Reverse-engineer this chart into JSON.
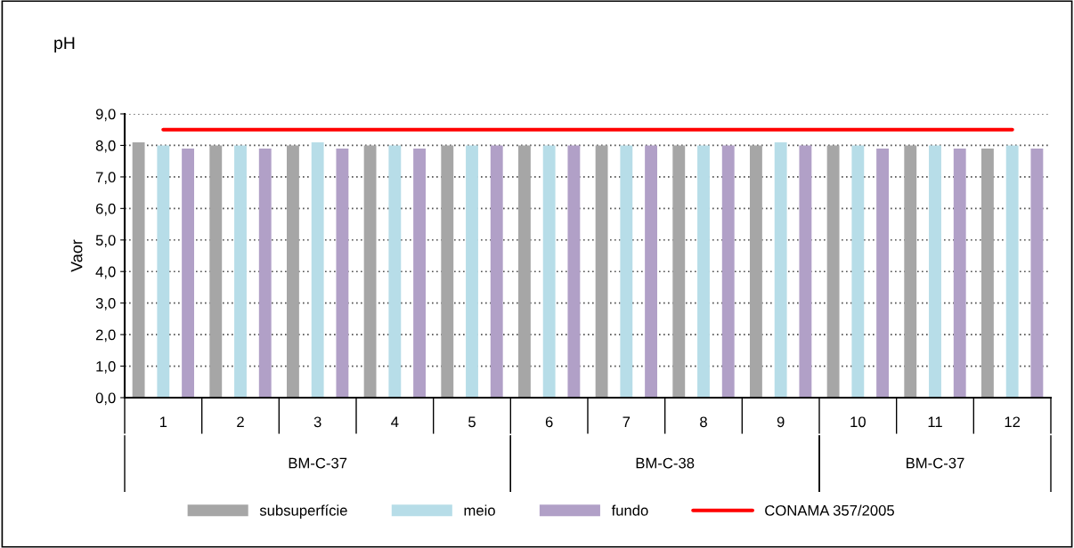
{
  "chart_data": {
    "type": "bar",
    "title": "pH",
    "ylabel": "Vaor",
    "categories": [
      "1",
      "2",
      "3",
      "4",
      "5",
      "6",
      "7",
      "8",
      "9",
      "10",
      "11",
      "12"
    ],
    "series": [
      {
        "name": "subsuperfície",
        "color": "#a6a6a6",
        "values": [
          8.1,
          8.0,
          8.0,
          8.0,
          8.0,
          8.0,
          8.0,
          8.0,
          8.0,
          8.0,
          8.0,
          7.9
        ]
      },
      {
        "name": "meio",
        "color": "#b7dde8",
        "values": [
          8.0,
          8.0,
          8.1,
          8.0,
          8.0,
          8.0,
          8.0,
          8.0,
          8.1,
          8.0,
          8.0,
          8.0
        ]
      },
      {
        "name": "fundo",
        "color": "#b1a0c7",
        "values": [
          7.9,
          7.9,
          7.9,
          7.9,
          8.0,
          8.0,
          8.0,
          8.0,
          8.0,
          7.9,
          7.9,
          7.9
        ]
      },
      {
        "name": "CONAMA 357/2005",
        "type": "line",
        "color": "#ff0000",
        "values": [
          8.5,
          8.5,
          8.5,
          8.5,
          8.5,
          8.5,
          8.5,
          8.5,
          8.5,
          8.5,
          8.5,
          8.5
        ]
      }
    ],
    "ylim": [
      0,
      9
    ],
    "yticks": [
      {
        "value": 0,
        "label": "0,0"
      },
      {
        "value": 1,
        "label": "1,0"
      },
      {
        "value": 2,
        "label": "2,0"
      },
      {
        "value": 3,
        "label": "3,0"
      },
      {
        "value": 4,
        "label": "4,0"
      },
      {
        "value": 5,
        "label": "5,0"
      },
      {
        "value": 6,
        "label": "6,0"
      },
      {
        "value": 7,
        "label": "7,0"
      },
      {
        "value": 8,
        "label": "8,0"
      },
      {
        "value": 9,
        "label": "9,0"
      }
    ],
    "grid": "y",
    "legend": "bottom",
    "annotations": [
      "BM-C-37",
      "BM-C-38",
      "BM-C-37"
    ]
  }
}
